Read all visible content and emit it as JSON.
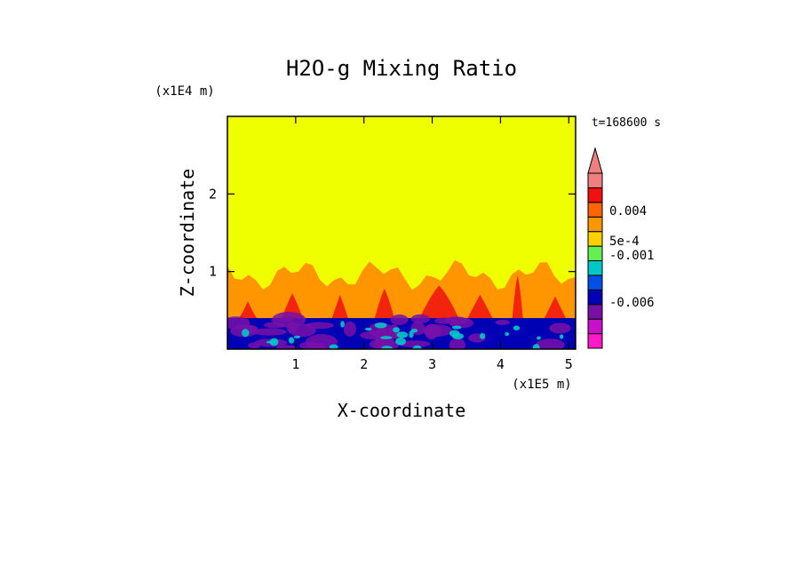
{
  "chart_data": {
    "type": "heatmap",
    "title": "H2O-g Mixing Ratio",
    "xlabel": "X-coordinate",
    "ylabel": "Z-coordinate",
    "x_scale_label": "(x1E5 m)",
    "y_scale_label": "(x1E4 m)",
    "time_label": "t=168600 s",
    "xlim": [
      0,
      5.1
    ],
    "ylim": [
      0,
      3.0
    ],
    "x_ticks": [
      1,
      2,
      3,
      4,
      5
    ],
    "y_ticks": [
      1,
      2
    ],
    "colorbar": {
      "tick_labels": [
        "0.004",
        "5e-4",
        "-0.001",
        "-0.006"
      ],
      "colors": [
        "#ff18c8",
        "#c810c8",
        "#7810a8",
        "#0000b4",
        "#0050e8",
        "#00c8c8",
        "#64f050",
        "#ffd000",
        "#ff9600",
        "#ff6400",
        "#f01010",
        "#f08080"
      ],
      "extend_color": "#f08080"
    },
    "colors": {
      "background_field": "#f0ff00",
      "layer_orange": "#ff9600",
      "layer_red": "#f01010",
      "layer_purple": "#7810a8",
      "layer_blue": "#0000b4",
      "layer_cyan": "#00c8c8"
    }
  }
}
